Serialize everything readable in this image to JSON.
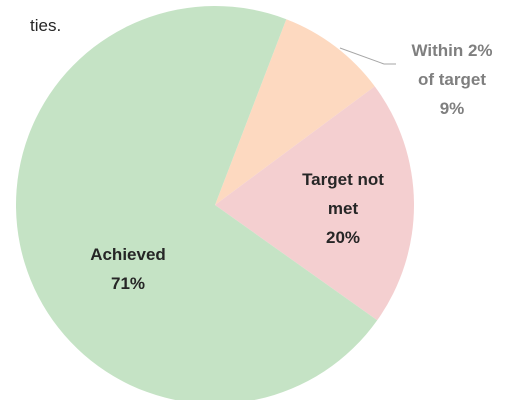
{
  "text_fragment": "ties.",
  "chart_data": {
    "type": "pie",
    "categories": [
      "Within 2% of target",
      "Target not met",
      "Achieved"
    ],
    "values": [
      9,
      20,
      71
    ],
    "value_labels": [
      "9%",
      "20%",
      "71%"
    ],
    "colors": [
      "#fdd9c0",
      "#f4cfd0",
      "#c5e3c5"
    ]
  }
}
